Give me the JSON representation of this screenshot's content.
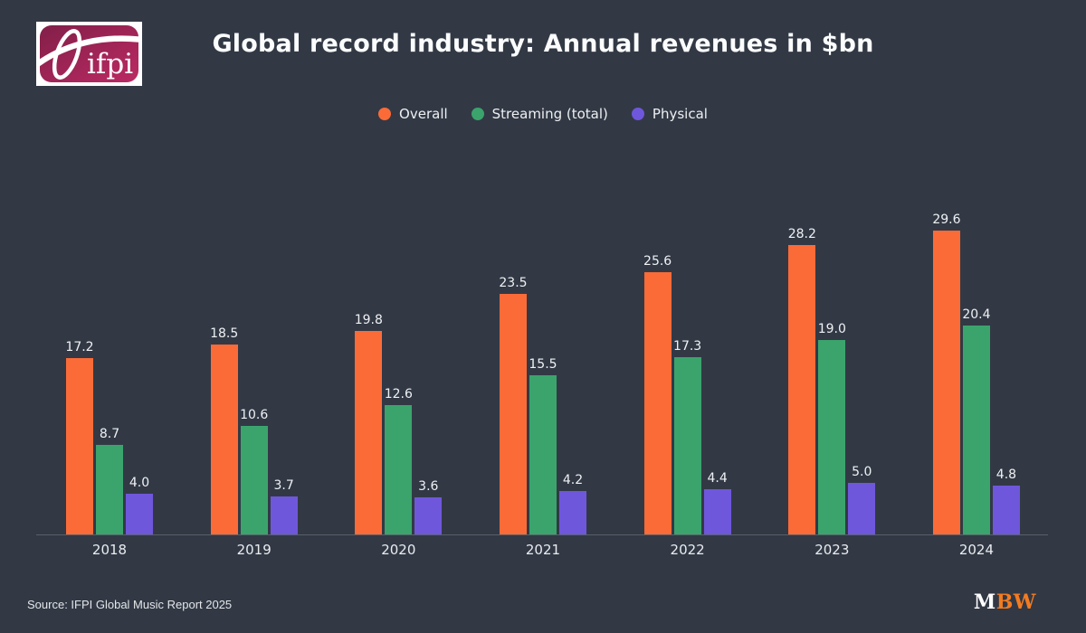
{
  "header": {
    "title": "Global record industry: Annual revenues in $bn",
    "logo_text": "ifpi"
  },
  "chart_data": {
    "type": "bar",
    "title": "Global record industry: Annual revenues in $bn",
    "categories": [
      "2018",
      "2019",
      "2020",
      "2021",
      "2022",
      "2023",
      "2024"
    ],
    "series": [
      {
        "name": "Overall",
        "color": "#fb6b38",
        "values": [
          17.2,
          18.5,
          19.8,
          23.5,
          25.6,
          28.2,
          29.6
        ]
      },
      {
        "name": "Streaming (total)",
        "color": "#3ba46c",
        "values": [
          8.7,
          10.6,
          12.6,
          15.5,
          17.3,
          19.0,
          20.4
        ]
      },
      {
        "name": "Physical",
        "color": "#6f57db",
        "values": [
          4.0,
          3.7,
          3.6,
          4.2,
          4.4,
          5.0,
          4.8
        ]
      }
    ],
    "xlabel": "",
    "ylabel": "",
    "ylim": [
      0,
      30
    ],
    "grid": false,
    "value_labels": true,
    "value_label_decimals": 1,
    "legend_position": "top-center"
  },
  "footer": {
    "source": "Source: IFPI Global Music Report 2025",
    "brand_m": "M",
    "brand_bw": "BW"
  },
  "colors": {
    "background": "#323945",
    "axis_line": "#596069",
    "label_text": "#eff1f4",
    "title_text": "#fbfcfd",
    "mbw_orange": "#f47b20",
    "ifpi_dark": "#821f49",
    "ifpi_light": "#bb2a63"
  }
}
